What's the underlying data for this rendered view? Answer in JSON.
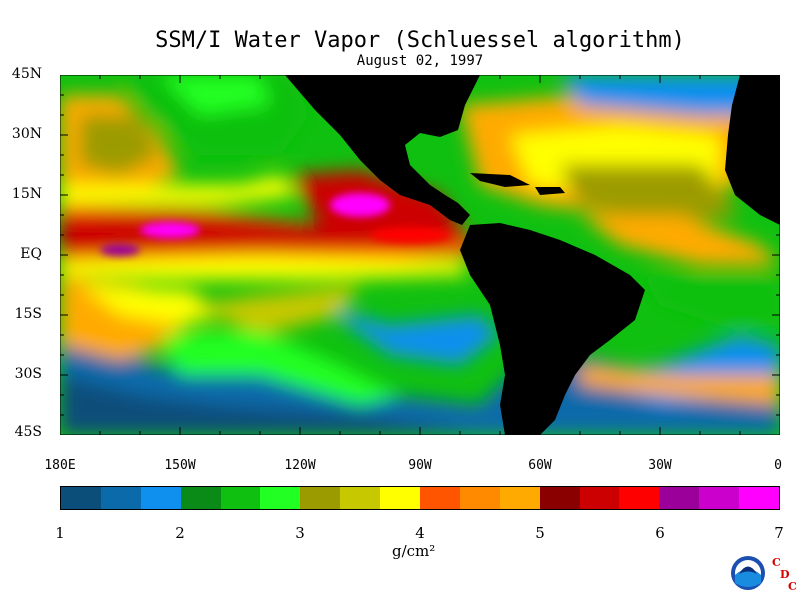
{
  "title": "SSM/I Water Vapor (Schluessel algorithm)",
  "subtitle": "August 02, 1997",
  "lat_ticks": [
    "45N",
    "30N",
    "15N",
    "EQ",
    "15S",
    "30S",
    "45S"
  ],
  "lon_ticks": [
    "180E",
    "150W",
    "120W",
    "90W",
    "60W",
    "30W",
    "0"
  ],
  "colorbar": {
    "colors": [
      "#0b4e7a",
      "#0a6aaa",
      "#1090ee",
      "#0a8a17",
      "#10c010",
      "#22ff22",
      "#9b9b00",
      "#c8c800",
      "#ffff00",
      "#ff5500",
      "#ff8a00",
      "#ffaa00",
      "#8a0000",
      "#cc0000",
      "#ff0000",
      "#9b009b",
      "#cc00cc",
      "#ff00ff"
    ],
    "labels": [
      "1",
      "2",
      "3",
      "4",
      "5",
      "6",
      "7"
    ],
    "units": "g/cm²"
  },
  "logo": {
    "text": "NOAA",
    "badge": "C D C"
  }
}
